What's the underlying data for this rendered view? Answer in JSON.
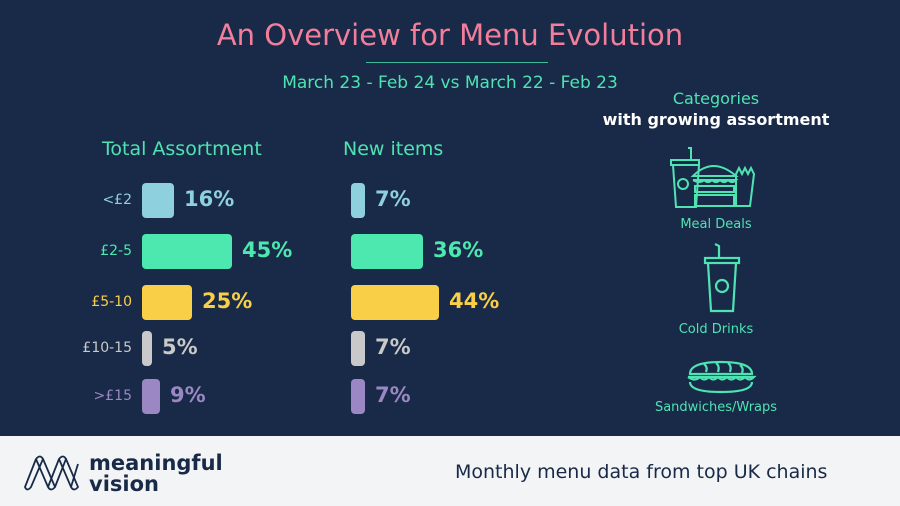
{
  "title": "An Overview for Menu Evolution",
  "subtitle": "March 23 - Feb 24 vs March 22 - Feb 23",
  "colors": {
    "background": "#182a47",
    "title": "#f27e9c",
    "accent": "#4fe3b3"
  },
  "chart_data": {
    "type": "bar",
    "orientation": "horizontal",
    "categories": [
      "<£2",
      "£2-5",
      "£5-10",
      "£10-15",
      ">£15"
    ],
    "category_colors": [
      "#8fd0de",
      "#4de8b0",
      "#f9cf48",
      "#c9c9c9",
      "#9a87c3"
    ],
    "series": [
      {
        "name": "Total Assortment",
        "values": [
          16,
          45,
          25,
          5,
          9
        ],
        "labels": [
          "16%",
          "45%",
          "25%",
          "5%",
          "9%"
        ]
      },
      {
        "name": "New items",
        "values": [
          7,
          36,
          44,
          7,
          7
        ],
        "labels": [
          "7%",
          "36%",
          "44%",
          "7%",
          "7%"
        ]
      }
    ]
  },
  "categories_panel": {
    "title": "Categories",
    "subtitle": "with growing assortment",
    "items": [
      {
        "label": "Meal Deals",
        "icon": "meal-deal-icon"
      },
      {
        "label": "Cold Drinks",
        "icon": "cold-drink-icon"
      },
      {
        "label": "Sandwiches/Wraps",
        "icon": "sandwich-icon"
      }
    ]
  },
  "footer": {
    "brand_line1": "meaningful",
    "brand_line2": "vision",
    "tagline": "Monthly menu data from top UK chains"
  }
}
